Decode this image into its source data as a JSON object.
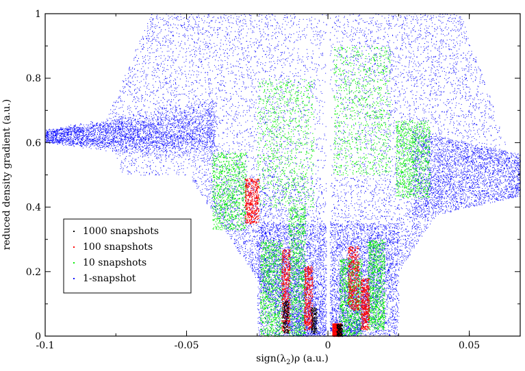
{
  "chart_data": {
    "type": "scatter",
    "title": "",
    "xlabel": "sign(λ2)ρ (a.u.)",
    "xlabel_parts": {
      "prefix": "sign(λ",
      "subscript": "2",
      "suffix": ")ρ (a.u.)"
    },
    "ylabel": "reduced density gradient (a.u.)",
    "xlim": [
      -0.1,
      0.068
    ],
    "ylim": [
      0,
      1
    ],
    "x_ticks": [
      -0.1,
      -0.05,
      0,
      0.05
    ],
    "x_tick_labels": [
      "-0.1",
      "-0.05",
      "0",
      "0.05"
    ],
    "y_ticks": [
      0,
      0.2,
      0.4,
      0.6,
      0.8,
      1
    ],
    "y_tick_labels": [
      "0",
      "0.2",
      "0.4",
      "0.6",
      "0.8",
      "1"
    ],
    "grid": false,
    "legend_position": "lower-left",
    "series": [
      {
        "name": "1000 snapshots",
        "color": "#000000"
      },
      {
        "name": "100 snapshots",
        "color": "#ff0000"
      },
      {
        "name": "10 snapshots",
        "color": "#00ee00"
      },
      {
        "name": "1-snapshot",
        "color": "#0000ff"
      }
    ]
  }
}
